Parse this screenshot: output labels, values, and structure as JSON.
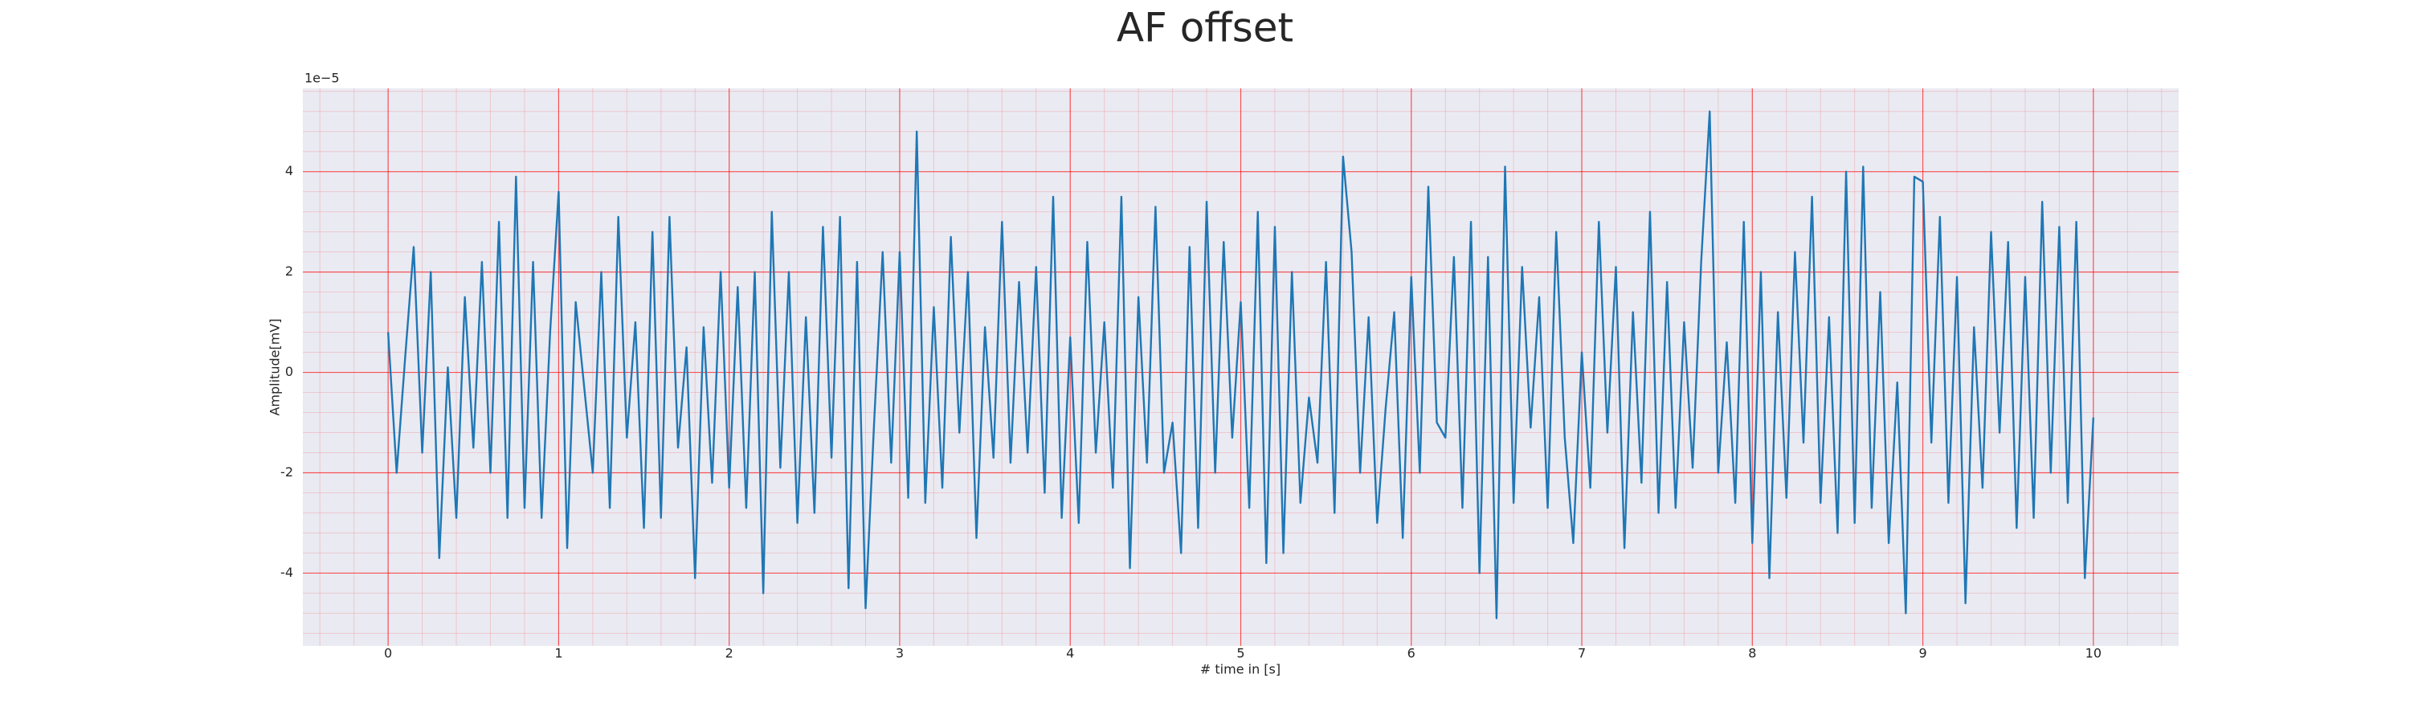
{
  "chart_data": {
    "type": "line",
    "title": "AF offset",
    "x_label": "# time in [s]",
    "y_label": "Amplitude[mV]",
    "y_offset_label": "1e−5",
    "color": "#1f77b4",
    "grid": true,
    "grid_color": "#ff0000",
    "minor_grid": true,
    "minor_divisions": 5,
    "background": "#eaeaf2",
    "xlim": [
      -0.5,
      10.5
    ],
    "xticks": [
      0,
      1,
      2,
      3,
      4,
      5,
      6,
      7,
      8,
      9,
      10
    ],
    "ylim": [
      -5.45,
      5.66
    ],
    "yticks": [
      -4,
      -2,
      0,
      2,
      4
    ],
    "x": [
      0,
      0.05,
      0.1,
      0.15,
      0.2,
      0.25,
      0.3,
      0.35,
      0.4,
      0.45,
      0.5,
      0.55,
      0.6,
      0.65,
      0.7,
      0.75,
      0.8,
      0.85,
      0.9,
      0.95,
      1,
      1.05,
      1.1,
      1.15,
      1.2,
      1.25,
      1.3,
      1.35,
      1.4,
      1.45,
      1.5,
      1.55,
      1.6,
      1.65,
      1.7,
      1.75,
      1.8,
      1.85,
      1.9,
      1.95,
      2,
      2.05,
      2.1,
      2.15,
      2.2,
      2.25,
      2.3,
      2.35,
      2.4,
      2.45,
      2.5,
      2.55,
      2.6,
      2.65,
      2.7,
      2.75,
      2.8,
      2.85,
      2.9,
      2.95,
      3,
      3.05,
      3.1,
      3.15,
      3.2,
      3.25,
      3.3,
      3.35,
      3.4,
      3.45,
      3.5,
      3.55,
      3.6,
      3.65,
      3.7,
      3.75,
      3.8,
      3.85,
      3.9,
      3.95,
      4,
      4.05,
      4.1,
      4.15,
      4.2,
      4.25,
      4.3,
      4.35,
      4.4,
      4.45,
      4.5,
      4.55,
      4.6,
      4.65,
      4.7,
      4.75,
      4.8,
      4.85,
      4.9,
      4.95,
      5,
      5.05,
      5.1,
      5.15,
      5.2,
      5.25,
      5.3,
      5.35,
      5.4,
      5.45,
      5.5,
      5.55,
      5.6,
      5.65,
      5.7,
      5.75,
      5.8,
      5.85,
      5.9,
      5.95,
      6,
      6.05,
      6.1,
      6.15,
      6.2,
      6.25,
      6.3,
      6.35,
      6.4,
      6.45,
      6.5,
      6.55,
      6.6,
      6.65,
      6.7,
      6.75,
      6.8,
      6.85,
      6.9,
      6.95,
      7,
      7.05,
      7.1,
      7.15,
      7.2,
      7.25,
      7.3,
      7.35,
      7.4,
      7.45,
      7.5,
      7.55,
      7.6,
      7.65,
      7.7,
      7.75,
      7.8,
      7.85,
      7.9,
      7.95,
      8,
      8.05,
      8.1,
      8.15,
      8.2,
      8.25,
      8.3,
      8.35,
      8.4,
      8.45,
      8.5,
      8.55,
      8.6,
      8.65,
      8.7,
      8.75,
      8.8,
      8.85,
      8.9,
      8.95,
      9,
      9.05,
      9.1,
      9.15,
      9.2,
      9.25,
      9.3,
      9.35,
      9.4,
      9.45,
      9.5,
      9.55,
      9.6,
      9.65,
      9.7,
      9.75,
      9.8,
      9.85,
      9.9,
      9.95,
      10
    ],
    "values": [
      0.8,
      -2.0,
      0.3,
      2.5,
      -1.6,
      2.0,
      -3.7,
      0.1,
      -2.9,
      1.5,
      -1.5,
      2.2,
      -2.0,
      3.0,
      -2.9,
      3.9,
      -2.7,
      2.2,
      -2.9,
      0.8,
      3.6,
      -3.5,
      1.4,
      -0.3,
      -2.0,
      2.0,
      -2.7,
      3.1,
      -1.3,
      1.0,
      -3.1,
      2.8,
      -2.9,
      3.1,
      -1.5,
      0.5,
      -4.1,
      0.9,
      -2.2,
      2.0,
      -2.3,
      1.7,
      -2.7,
      2.0,
      -4.4,
      3.2,
      -1.9,
      2.0,
      -3.0,
      1.1,
      -2.8,
      2.9,
      -1.7,
      3.1,
      -4.3,
      2.2,
      -4.7,
      -1.0,
      2.4,
      -1.8,
      2.4,
      -2.5,
      4.8,
      -2.6,
      1.3,
      -2.3,
      2.7,
      -1.2,
      2.0,
      -3.3,
      0.9,
      -1.7,
      3.0,
      -1.8,
      1.8,
      -1.6,
      2.1,
      -2.4,
      3.5,
      -2.9,
      0.7,
      -3.0,
      2.6,
      -1.6,
      1.0,
      -2.3,
      3.5,
      -3.9,
      1.5,
      -1.8,
      3.3,
      -2.0,
      -1.0,
      -3.6,
      2.5,
      -3.1,
      3.4,
      -2.0,
      2.6,
      -1.3,
      1.4,
      -2.7,
      3.2,
      -3.8,
      2.9,
      -3.6,
      2.0,
      -2.6,
      -0.5,
      -1.8,
      2.2,
      -2.8,
      4.3,
      2.4,
      -2.0,
      1.1,
      -3.0,
      -0.7,
      1.2,
      -3.3,
      1.9,
      -2.0,
      3.7,
      -1.0,
      -1.3,
      2.3,
      -2.7,
      3.0,
      -4.0,
      2.3,
      -4.9,
      4.1,
      -2.6,
      2.1,
      -1.1,
      1.5,
      -2.7,
      2.8,
      -1.3,
      -3.4,
      0.4,
      -2.3,
      3.0,
      -1.2,
      2.1,
      -3.5,
      1.2,
      -2.2,
      3.2,
      -2.8,
      1.8,
      -2.7,
      1.0,
      -1.9,
      2.2,
      5.2,
      -2.0,
      0.6,
      -2.6,
      3.0,
      -3.4,
      2.0,
      -4.1,
      1.2,
      -2.5,
      2.4,
      -1.4,
      3.5,
      -2.6,
      1.1,
      -3.2,
      4.0,
      -3.0,
      4.1,
      -2.7,
      1.6,
      -3.4,
      -0.2,
      -4.8,
      3.9,
      3.8,
      -1.4,
      3.1,
      -2.6,
      1.9,
      -4.6,
      0.9,
      -2.3,
      2.8,
      -1.2,
      2.6,
      -3.1,
      1.9,
      -2.9,
      3.4,
      -2.0,
      2.9,
      -2.6,
      3.0,
      -4.1,
      -0.9
    ]
  }
}
